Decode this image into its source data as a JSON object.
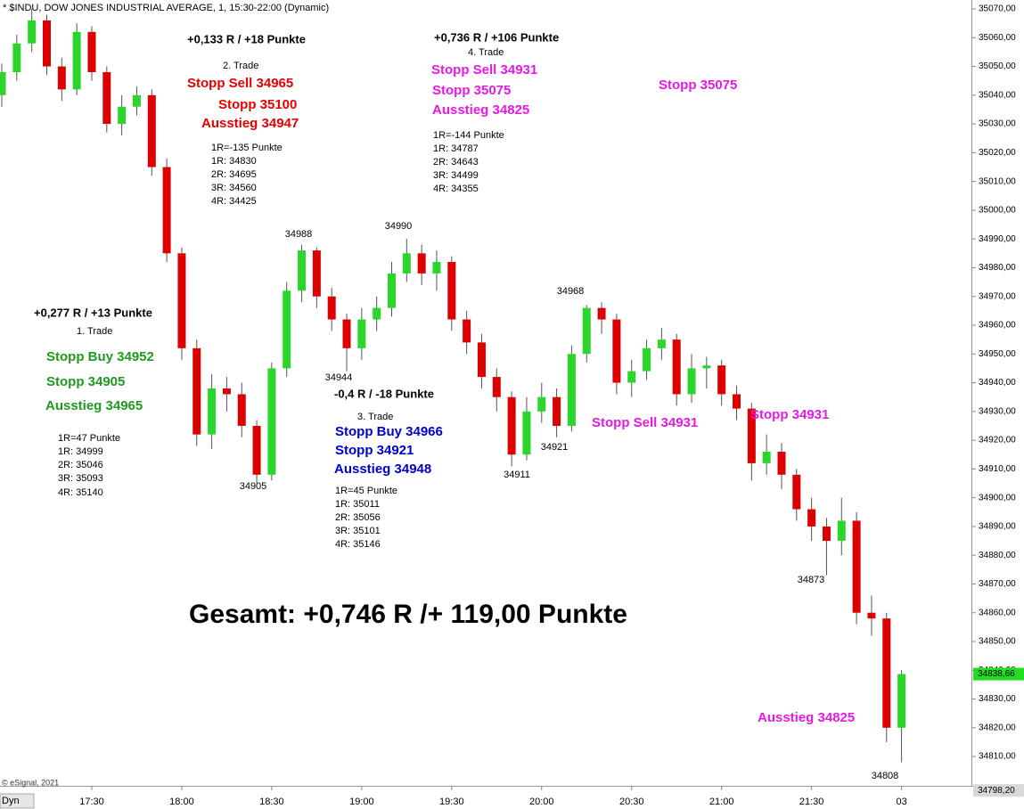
{
  "chart_data": {
    "type": "candlestick",
    "title": "* $INDU, DOW JONES INDUSTRIAL AVERAGE, 1, 15:30-22:00 (Dynamic)",
    "footer": "© eSignal, 2021",
    "corner_label": "Dyn",
    "up_color": "#2bd62b",
    "down_color": "#dd0000",
    "wick_color": "#555555",
    "x": [
      1020,
      1025,
      1030,
      1035,
      1040,
      1045,
      1050,
      1055,
      1060,
      1065,
      1070,
      1075,
      1080,
      1085,
      1090,
      1095,
      1100,
      1105,
      1110,
      1115,
      1120,
      1125,
      1130,
      1135,
      1140,
      1145,
      1150,
      1155,
      1160,
      1165,
      1170,
      1175,
      1180,
      1185,
      1190,
      1195,
      1200,
      1205,
      1210,
      1215,
      1220,
      1225,
      1230,
      1235,
      1240,
      1245,
      1250,
      1255,
      1260,
      1265,
      1270,
      1275,
      1280,
      1285,
      1290,
      1295,
      1300,
      1305,
      1310,
      1315,
      1320
    ],
    "series": [
      {
        "open": [
          35040,
          35048,
          35058,
          35066,
          35050,
          35042,
          35062,
          35048,
          35030,
          35036,
          35040,
          35015,
          34985,
          34952,
          34922,
          34938,
          34936,
          34925,
          34908,
          34945,
          34972,
          34986,
          34970,
          34962,
          34952,
          34962,
          34966,
          34978,
          34985,
          34978,
          34982,
          34962,
          34954,
          34942,
          34935,
          34915,
          34930,
          34935,
          34925,
          34950,
          34966,
          34962,
          34940,
          34944,
          34952,
          34955,
          34936,
          34945,
          34946,
          34936,
          34931,
          34912,
          34916,
          34908,
          34896,
          34890,
          34885,
          34892,
          34860,
          34858,
          34820
        ],
        "high": [
          35051,
          35061,
          35070,
          35068,
          35053,
          35065,
          35064,
          35050,
          35040,
          35043,
          35042,
          35018,
          34987,
          34955,
          34943,
          34942,
          34940,
          34927,
          34947,
          34975,
          34988,
          34987,
          34973,
          34964,
          34966,
          34970,
          34982,
          34990,
          34988,
          34986,
          34984,
          34965,
          34957,
          34945,
          34937,
          34935,
          34940,
          34938,
          34953,
          34967,
          34968,
          34964,
          34948,
          34955,
          34959,
          34957,
          34950,
          34949,
          34948,
          34939,
          34933,
          34922,
          34919,
          34910,
          34900,
          34893,
          34900,
          34895,
          34866,
          34860,
          34840
        ],
        "low": [
          35036,
          35045,
          35055,
          35047,
          35038,
          35040,
          35045,
          35027,
          35026,
          35033,
          35012,
          34982,
          34948,
          34918,
          34917,
          34930,
          34921,
          34905,
          34906,
          34942,
          34968,
          34966,
          34958,
          34944,
          34948,
          34958,
          34963,
          34975,
          34974,
          34972,
          34958,
          34950,
          34938,
          34930,
          34911,
          34913,
          34926,
          34921,
          34923,
          34947,
          34957,
          34936,
          34935,
          34941,
          34948,
          34932,
          34933,
          34938,
          34932,
          34927,
          34906,
          34908,
          34903,
          34892,
          34885,
          34873,
          34880,
          34856,
          34852,
          34815,
          34808
        ],
        "close": [
          35048,
          35058,
          35066,
          35050,
          35042,
          35062,
          35048,
          35030,
          35036,
          35040,
          35015,
          34985,
          34952,
          34922,
          34938,
          34936,
          34925,
          34908,
          34945,
          34972,
          34986,
          34970,
          34962,
          34952,
          34962,
          34966,
          34978,
          34985,
          34978,
          34982,
          34962,
          34954,
          34942,
          34935,
          34915,
          34930,
          34935,
          34925,
          34950,
          34966,
          34962,
          34940,
          34944,
          34952,
          34955,
          34936,
          34945,
          34946,
          34936,
          34931,
          34912,
          34916,
          34908,
          34896,
          34890,
          34885,
          34892,
          34860,
          34858,
          34820,
          34838.66
        ]
      }
    ],
    "xlim": [
      1019.4,
      1343.3
    ],
    "xticks": [
      {
        "value": 1050,
        "label": "17:30"
      },
      {
        "value": 1080,
        "label": "18:00"
      },
      {
        "value": 1110,
        "label": "18:30"
      },
      {
        "value": 1140,
        "label": "19:00"
      },
      {
        "value": 1170,
        "label": "19:30"
      },
      {
        "value": 1200,
        "label": "20:00"
      },
      {
        "value": 1230,
        "label": "20:30"
      },
      {
        "value": 1260,
        "label": "21:00"
      },
      {
        "value": 1290,
        "label": "21:30"
      },
      {
        "value": 1320,
        "label": "03"
      }
    ],
    "ylim": [
      34799.8,
      35073.1
    ],
    "yticks": [
      {
        "value": 35070,
        "label": "35070,00"
      },
      {
        "value": 35060,
        "label": "35060,00"
      },
      {
        "value": 35050,
        "label": "35050,00"
      },
      {
        "value": 35040,
        "label": "35040,00"
      },
      {
        "value": 35030,
        "label": "35030,00"
      },
      {
        "value": 35020,
        "label": "35020,00"
      },
      {
        "value": 35010,
        "label": "35010,00"
      },
      {
        "value": 35000,
        "label": "35000,00"
      },
      {
        "value": 34990,
        "label": "34990,00"
      },
      {
        "value": 34980,
        "label": "34980,00"
      },
      {
        "value": 34970,
        "label": "34970,00"
      },
      {
        "value": 34960,
        "label": "34960,00"
      },
      {
        "value": 34950,
        "label": "34950,00"
      },
      {
        "value": 34940,
        "label": "34940,00"
      },
      {
        "value": 34930,
        "label": "34930,00"
      },
      {
        "value": 34920,
        "label": "34920,00"
      },
      {
        "value": 34910,
        "label": "34910,00"
      },
      {
        "value": 34900,
        "label": "34900,00"
      },
      {
        "value": 34890,
        "label": "34890,00"
      },
      {
        "value": 34880,
        "label": "34880,00"
      },
      {
        "value": 34870,
        "label": "34870,00"
      },
      {
        "value": 34860,
        "label": "34860,00"
      },
      {
        "value": 34850,
        "label": "34850,00"
      },
      {
        "value": 34840,
        "label": "34840,00"
      },
      {
        "value": 34830,
        "label": "34830,00"
      },
      {
        "value": 34820,
        "label": "34820,00"
      },
      {
        "value": 34810,
        "label": "34810,00"
      }
    ],
    "price_markers": [
      {
        "value": 34838.66,
        "label": "34838,66",
        "color": "#22dd22"
      },
      {
        "value": 34798.2,
        "label": "34798,20",
        "color": "#d8d8d8"
      }
    ],
    "annotations": [
      {
        "text": "+0,133 R / +18 Punkte",
        "color": "#000000"
      },
      {
        "text": "2. Trade",
        "color": "#000000"
      },
      {
        "text": "Stopp Sell 34965",
        "color": "#e60000"
      },
      {
        "text": "Stopp 35100",
        "color": "#e60000"
      },
      {
        "text": "Ausstieg 34947",
        "color": "#e60000"
      },
      {
        "text": "1R=-135 Punkte",
        "color": "#000000"
      },
      {
        "text": "1R: 34830",
        "color": "#000000"
      },
      {
        "text": "2R: 34695",
        "color": "#000000"
      },
      {
        "text": "3R: 34560",
        "color": "#000000"
      },
      {
        "text": "4R: 34425",
        "color": "#000000"
      },
      {
        "text": "+0,736 R / +106 Punkte",
        "color": "#000000"
      },
      {
        "text": "4. Trade",
        "color": "#000000"
      },
      {
        "text": "Stopp Sell 34931",
        "color": "#e619e6"
      },
      {
        "text": "Stopp 35075",
        "color": "#e619e6"
      },
      {
        "text": "Ausstieg 34825",
        "color": "#e619e6"
      },
      {
        "text": "1R=-144 Punkte",
        "color": "#000000"
      },
      {
        "text": "1R: 34787",
        "color": "#000000"
      },
      {
        "text": "2R: 34643",
        "color": "#000000"
      },
      {
        "text": "3R: 34499",
        "color": "#000000"
      },
      {
        "text": "4R: 34355",
        "color": "#000000"
      },
      {
        "text": "Stopp 35075",
        "color": "#e619e6"
      },
      {
        "text": "+0,277 R / +13 Punkte",
        "color": "#000000"
      },
      {
        "text": "1. Trade",
        "color": "#000000"
      },
      {
        "text": "Stopp Buy 34952",
        "color": "#1f9a1f"
      },
      {
        "text": "Stopp 34905",
        "color": "#1f9a1f"
      },
      {
        "text": "Ausstieg 34965",
        "color": "#1f9a1f"
      },
      {
        "text": "1R=47 Punkte",
        "color": "#000000"
      },
      {
        "text": "1R: 34999",
        "color": "#000000"
      },
      {
        "text": "2R: 35046",
        "color": "#000000"
      },
      {
        "text": "3R: 35093",
        "color": "#000000"
      },
      {
        "text": "4R: 35140",
        "color": "#000000"
      },
      {
        "text": "-0,4 R / -18 Punkte",
        "color": "#000000"
      },
      {
        "text": "3. Trade",
        "color": "#000000"
      },
      {
        "text": "Stopp Buy 34966",
        "color": "#0000d0"
      },
      {
        "text": "Stopp 34921",
        "color": "#0000d0"
      },
      {
        "text": "Ausstieg 34948",
        "color": "#0000d0"
      },
      {
        "text": "1R=45 Punkte",
        "color": "#000000"
      },
      {
        "text": "1R: 35011",
        "color": "#000000"
      },
      {
        "text": "2R: 35056",
        "color": "#000000"
      },
      {
        "text": "3R: 35101",
        "color": "#000000"
      },
      {
        "text": "4R: 35146",
        "color": "#000000"
      },
      {
        "text": "Stopp Sell 34931",
        "color": "#e619e6"
      },
      {
        "text": "Stopp 34931",
        "color": "#e619e6"
      },
      {
        "text": "Gesamt: +0,746 R /+ 119,00 Punkte",
        "color": "#000000"
      },
      {
        "text": "Ausstieg 34825",
        "color": "#e619e6"
      },
      {
        "text": "34988",
        "color": "#000000"
      },
      {
        "text": "34990",
        "color": "#000000"
      },
      {
        "text": "34968",
        "color": "#000000"
      },
      {
        "text": "34944",
        "color": "#000000"
      },
      {
        "text": "34905",
        "color": "#000000"
      },
      {
        "text": "34911",
        "color": "#000000"
      },
      {
        "text": "34921",
        "color": "#000000"
      },
      {
        "text": "34873",
        "color": "#000000"
      },
      {
        "text": "34808",
        "color": "#000000"
      }
    ]
  }
}
